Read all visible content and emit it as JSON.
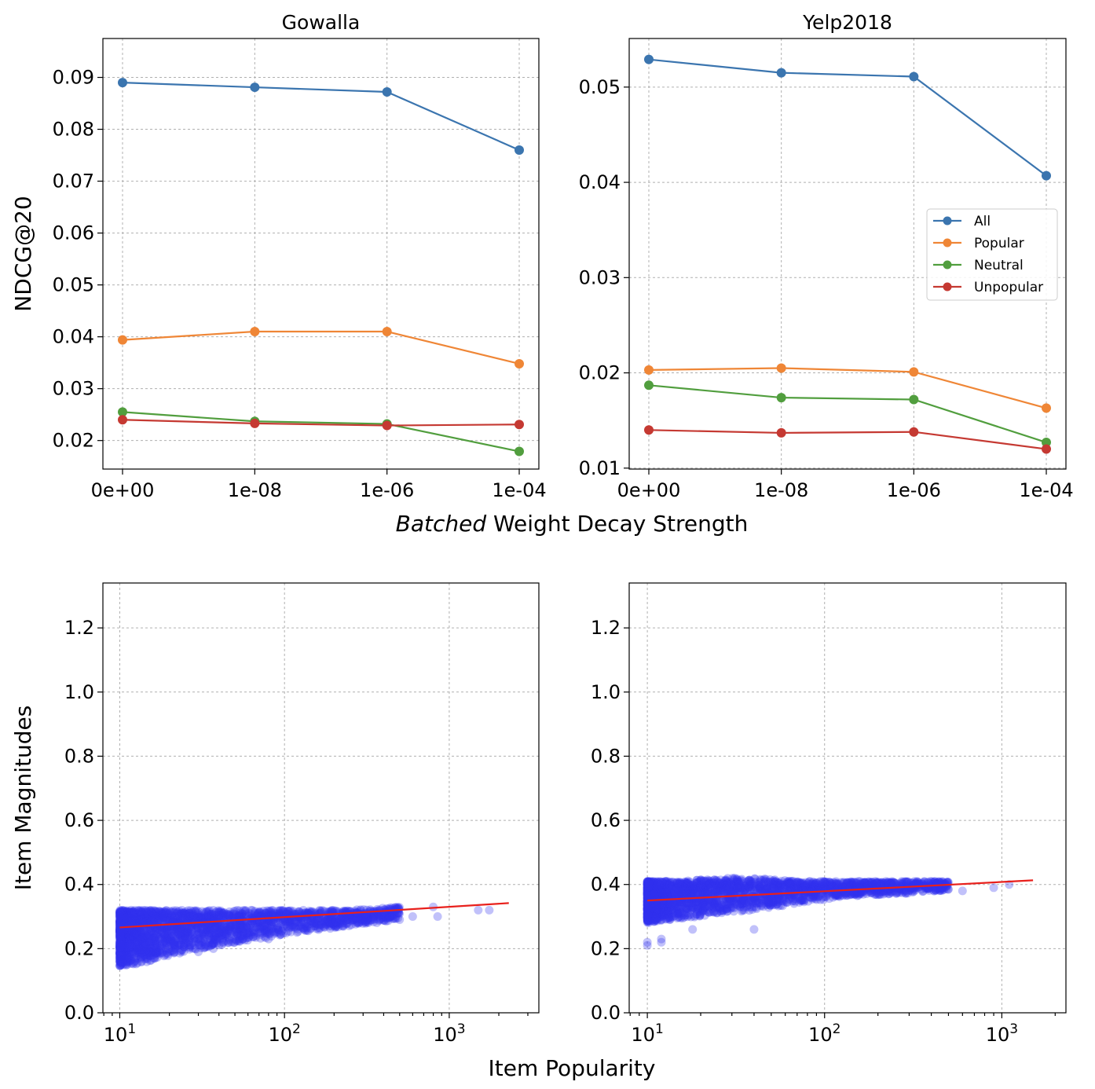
{
  "chart_data": [
    {
      "type": "line",
      "title": "Gowalla",
      "xlabel": "",
      "ylabel": "NDCG@20",
      "categories": [
        "0e+00",
        "1e-08",
        "1e-06",
        "1e-04"
      ],
      "ylim": [
        0.0145,
        0.0975
      ],
      "yticks": [
        "0.02",
        "0.03",
        "0.04",
        "0.05",
        "0.06",
        "0.07",
        "0.08",
        "0.09"
      ],
      "grid": true,
      "series": [
        {
          "name": "All",
          "color": "#3b75af",
          "values": [
            0.089,
            0.0881,
            0.0872,
            0.076
          ]
        },
        {
          "name": "Popular",
          "color": "#ef8636",
          "values": [
            0.0394,
            0.041,
            0.041,
            0.0348
          ]
        },
        {
          "name": "Neutral",
          "color": "#519e3e",
          "values": [
            0.0255,
            0.0237,
            0.0232,
            0.0179
          ]
        },
        {
          "name": "Unpopular",
          "color": "#c53932",
          "values": [
            0.024,
            0.0233,
            0.0229,
            0.0231
          ]
        }
      ]
    },
    {
      "type": "line",
      "title": "Yelp2018",
      "xlabel": "",
      "ylabel": "",
      "categories": [
        "0e+00",
        "1e-08",
        "1e-06",
        "1e-04"
      ],
      "ylim": [
        0.0099,
        0.0551
      ],
      "yticks": [
        "0.01",
        "0.02",
        "0.03",
        "0.04",
        "0.05"
      ],
      "grid": true,
      "legend": "center-right",
      "series": [
        {
          "name": "All",
          "color": "#3b75af",
          "values": [
            0.0529,
            0.0515,
            0.0511,
            0.0407
          ]
        },
        {
          "name": "Popular",
          "color": "#ef8636",
          "values": [
            0.0203,
            0.0205,
            0.0201,
            0.0163
          ]
        },
        {
          "name": "Neutral",
          "color": "#519e3e",
          "values": [
            0.0187,
            0.0174,
            0.0172,
            0.0127
          ]
        },
        {
          "name": "Unpopular",
          "color": "#c53932",
          "values": [
            0.014,
            0.0137,
            0.0138,
            0.012
          ]
        }
      ]
    },
    {
      "type": "scatter",
      "title": "",
      "xlabel": "",
      "ylabel": "Item Magnitudes",
      "xscale": "log",
      "xlim": [
        7.9,
        3500
      ],
      "ylim": [
        0.0,
        1.34
      ],
      "xticks": [
        10,
        100,
        1000
      ],
      "yticks": [
        "0.0",
        "0.2",
        "0.4",
        "0.6",
        "0.8",
        "1.0",
        "1.2"
      ],
      "grid": true,
      "point_color": "#3333ee",
      "fit_color": "#e8201c",
      "fit_line": {
        "x": [
          10,
          2300
        ],
        "y": [
          0.266,
          0.342
        ]
      },
      "cloud": [
        {
          "x": 10,
          "y_min": 0.14,
          "y_max": 0.32
        },
        {
          "x": 15,
          "y_min": 0.16,
          "y_max": 0.32
        },
        {
          "x": 25,
          "y_min": 0.19,
          "y_max": 0.32
        },
        {
          "x": 40,
          "y_min": 0.21,
          "y_max": 0.32
        },
        {
          "x": 70,
          "y_min": 0.23,
          "y_max": 0.32
        },
        {
          "x": 120,
          "y_min": 0.25,
          "y_max": 0.32
        },
        {
          "x": 250,
          "y_min": 0.27,
          "y_max": 0.32
        },
        {
          "x": 500,
          "y_min": 0.29,
          "y_max": 0.33
        }
      ],
      "outliers": [
        {
          "x": 30,
          "y": 0.19
        },
        {
          "x": 37,
          "y": 0.2
        },
        {
          "x": 55,
          "y": 0.24
        },
        {
          "x": 80,
          "y": 0.23
        },
        {
          "x": 600,
          "y": 0.3
        },
        {
          "x": 800,
          "y": 0.33
        },
        {
          "x": 850,
          "y": 0.3
        },
        {
          "x": 1500,
          "y": 0.32
        },
        {
          "x": 1750,
          "y": 0.32
        }
      ]
    },
    {
      "type": "scatter",
      "title": "",
      "xlabel": "",
      "ylabel": "",
      "xscale": "log",
      "xlim": [
        7.9,
        2300
      ],
      "ylim": [
        0.0,
        1.34
      ],
      "xticks": [
        10,
        100,
        1000
      ],
      "yticks": [
        "0.0",
        "0.2",
        "0.4",
        "0.6",
        "0.8",
        "1.0",
        "1.2"
      ],
      "grid": true,
      "point_color": "#3333ee",
      "fit_color": "#e8201c",
      "fit_line": {
        "x": [
          10,
          1500
        ],
        "y": [
          0.35,
          0.413
        ]
      },
      "cloud": [
        {
          "x": 10,
          "y_min": 0.28,
          "y_max": 0.41
        },
        {
          "x": 15,
          "y_min": 0.29,
          "y_max": 0.41
        },
        {
          "x": 25,
          "y_min": 0.31,
          "y_max": 0.42
        },
        {
          "x": 40,
          "y_min": 0.32,
          "y_max": 0.42
        },
        {
          "x": 70,
          "y_min": 0.34,
          "y_max": 0.41
        },
        {
          "x": 120,
          "y_min": 0.36,
          "y_max": 0.41
        },
        {
          "x": 250,
          "y_min": 0.37,
          "y_max": 0.41
        },
        {
          "x": 500,
          "y_min": 0.38,
          "y_max": 0.41
        }
      ],
      "outliers": [
        {
          "x": 10,
          "y": 0.21
        },
        {
          "x": 10,
          "y": 0.22
        },
        {
          "x": 12,
          "y": 0.23
        },
        {
          "x": 12,
          "y": 0.22
        },
        {
          "x": 40,
          "y": 0.26
        },
        {
          "x": 18,
          "y": 0.26
        },
        {
          "x": 900,
          "y": 0.39
        },
        {
          "x": 1100,
          "y": 0.4
        },
        {
          "x": 600,
          "y": 0.38
        }
      ]
    }
  ],
  "figure": {
    "top_xlabel_italic": "Batched",
    "top_xlabel_rest": " Weight Decay Strength",
    "bottom_xlabel": "Item Popularity"
  }
}
